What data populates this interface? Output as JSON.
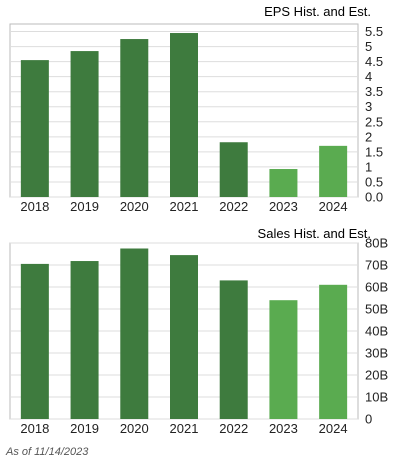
{
  "footer": {
    "as_of": "As of 11/14/2023"
  },
  "colors": {
    "historical": "#3e7b3e",
    "estimate": "#5aab50",
    "grid": "#dddddd",
    "frame": "#bbbbbb",
    "background": "#ffffff"
  },
  "chart_data": [
    {
      "type": "bar",
      "title": "EPS Hist. and Est.",
      "categories": [
        "2018",
        "2019",
        "2020",
        "2021",
        "2022",
        "2023",
        "2024"
      ],
      "values": [
        4.55,
        4.85,
        5.25,
        5.45,
        1.82,
        0.93,
        1.7
      ],
      "estimate_flags": [
        false,
        false,
        false,
        false,
        false,
        true,
        true
      ],
      "ylim": [
        0,
        5.75
      ],
      "yticks": [
        {
          "value": 0,
          "label": "0.0"
        },
        {
          "value": 0.5,
          "label": "0.5"
        },
        {
          "value": 1,
          "label": "1"
        },
        {
          "value": 1.5,
          "label": "1.5"
        },
        {
          "value": 2,
          "label": "2"
        },
        {
          "value": 2.5,
          "label": "2.5"
        },
        {
          "value": 3,
          "label": "3"
        },
        {
          "value": 3.5,
          "label": "3.5"
        },
        {
          "value": 4,
          "label": "4"
        },
        {
          "value": 4.5,
          "label": "4.5"
        },
        {
          "value": 5,
          "label": "5"
        },
        {
          "value": 5.5,
          "label": "5.5"
        }
      ],
      "grid": true,
      "y_axis_side": "right"
    },
    {
      "type": "bar",
      "title": "Sales Hist. and Est.",
      "categories": [
        "2018",
        "2019",
        "2020",
        "2021",
        "2022",
        "2023",
        "2024"
      ],
      "values": [
        70.5,
        71.8,
        77.5,
        74.5,
        63,
        54,
        61
      ],
      "estimate_flags": [
        false,
        false,
        false,
        false,
        false,
        true,
        true
      ],
      "ylim": [
        0,
        80
      ],
      "yticks": [
        {
          "value": 0,
          "label": "0"
        },
        {
          "value": 10,
          "label": "10B"
        },
        {
          "value": 20,
          "label": "20B"
        },
        {
          "value": 30,
          "label": "30B"
        },
        {
          "value": 40,
          "label": "40B"
        },
        {
          "value": 50,
          "label": "50B"
        },
        {
          "value": 60,
          "label": "60B"
        },
        {
          "value": 70,
          "label": "70B"
        },
        {
          "value": 80,
          "label": "80B"
        }
      ],
      "grid": true,
      "y_axis_side": "right"
    }
  ]
}
